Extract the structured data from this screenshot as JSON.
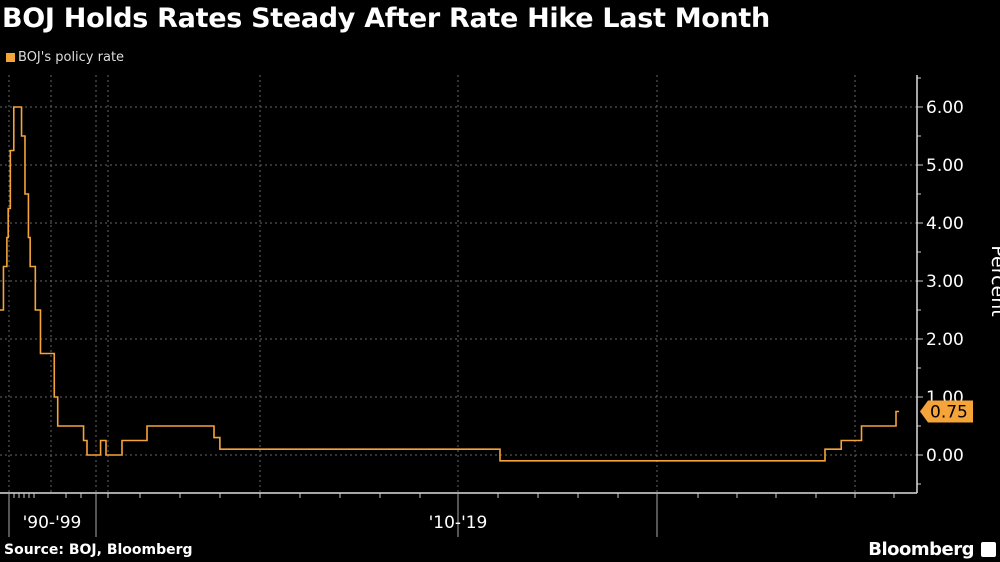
{
  "title": "BOJ Holds Rates Steady After Rate Hike Last Month",
  "source": "Source: BOJ, Bloomberg",
  "brand": "Bloomberg",
  "chart_data": {
    "type": "line",
    "step": true,
    "title": "BOJ Holds Rates Steady After Rate Hike Last Month",
    "ylabel": "Percent",
    "xlabel": "",
    "ylim": [
      -0.65,
      6.55
    ],
    "y_ticks": [
      "0.00",
      "1.00",
      "2.00",
      "3.00",
      "4.00",
      "5.00",
      "6.00"
    ],
    "x_tick_labels": [
      "'90-'99",
      "'10-'19"
    ],
    "grid": true,
    "legend_position": "top-left",
    "last_value_label": "0.75",
    "color": "#f5a43a",
    "series": [
      {
        "name": "BOJ's policy rate",
        "x": [
          1989.0,
          1989.4,
          1989.8,
          1989.95,
          1990.2,
          1990.6,
          1991.5,
          1991.9,
          1992.3,
          1992.5,
          1993.1,
          1993.7,
          1995.3,
          1995.7,
          1998.7,
          1999.1,
          2000.6,
          2001.2,
          2006.5,
          2007.1,
          2008.8,
          2008.95,
          2016.1,
          2024.2,
          2024.6,
          2025.1,
          2025.95,
          2026.05
        ],
        "y": [
          2.5,
          3.25,
          3.75,
          4.25,
          5.25,
          6.0,
          5.5,
          4.5,
          3.75,
          3.25,
          2.5,
          1.75,
          1.0,
          0.5,
          0.25,
          0.0,
          0.25,
          0.0,
          0.25,
          0.5,
          0.3,
          0.1,
          -0.1,
          0.1,
          0.25,
          0.5,
          0.75,
          0.75
        ]
      }
    ]
  }
}
